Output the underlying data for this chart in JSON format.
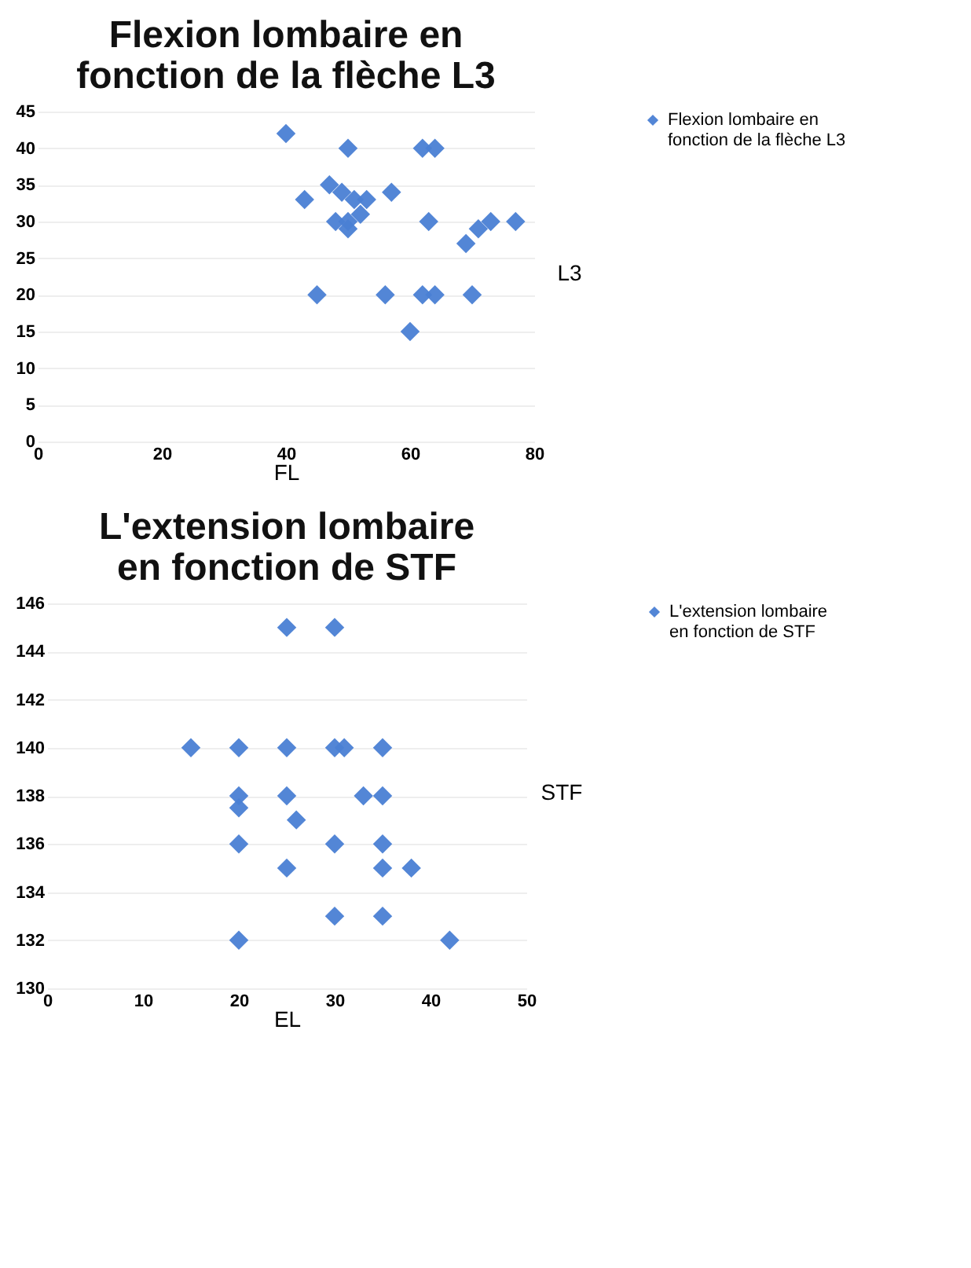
{
  "chart_data": [
    {
      "type": "scatter",
      "title": "Flexion lombaire en fonction de la flèche L3",
      "xlabel": "FL",
      "ylabel": "L3",
      "xlim": [
        0,
        80
      ],
      "xticks": [
        0,
        20,
        40,
        60,
        80
      ],
      "ylim": [
        0,
        45
      ],
      "yticks": [
        0,
        5,
        10,
        15,
        20,
        25,
        30,
        35,
        40,
        45
      ],
      "grid": "y",
      "legend": "right",
      "marker": "diamond",
      "x": [
        40,
        50,
        62,
        64,
        43,
        47,
        49,
        51,
        53,
        57,
        48,
        50,
        50,
        52,
        63,
        69,
        71,
        73,
        77,
        45,
        56,
        62,
        64,
        70,
        60
      ],
      "series": [
        {
          "name": "Flexion lombaire en fonction de la flèche L3",
          "color": "#4a7fd4",
          "values": [
            42,
            40,
            40,
            40,
            33,
            35,
            34,
            33,
            33,
            34,
            30,
            30,
            29,
            31,
            30,
            27,
            29,
            30,
            30,
            20,
            20,
            20,
            20,
            20,
            15
          ]
        }
      ]
    },
    {
      "type": "scatter",
      "title": "L'extension lombaire en fonction de STF",
      "xlabel": "EL",
      "ylabel": "STF",
      "xlim": [
        0,
        50
      ],
      "xticks": [
        0,
        10,
        20,
        30,
        40,
        50
      ],
      "ylim": [
        130,
        146
      ],
      "yticks": [
        130,
        132,
        134,
        136,
        138,
        140,
        142,
        144,
        146
      ],
      "grid": "y",
      "legend": "right",
      "marker": "diamond",
      "x": [
        25,
        30,
        15,
        20,
        25,
        30,
        31,
        35,
        20,
        20,
        25,
        26,
        33,
        35,
        20,
        30,
        35,
        25,
        35,
        38,
        30,
        35,
        20,
        42
      ],
      "series": [
        {
          "name": "L'extension lombaire en fonction de STF",
          "color": "#4a7fd4",
          "values": [
            145,
            145,
            140,
            140,
            140,
            140,
            140,
            140,
            138,
            137.5,
            138,
            137,
            138,
            138,
            136,
            136,
            136,
            135,
            135,
            135,
            133,
            133,
            132,
            132
          ]
        }
      ]
    }
  ]
}
